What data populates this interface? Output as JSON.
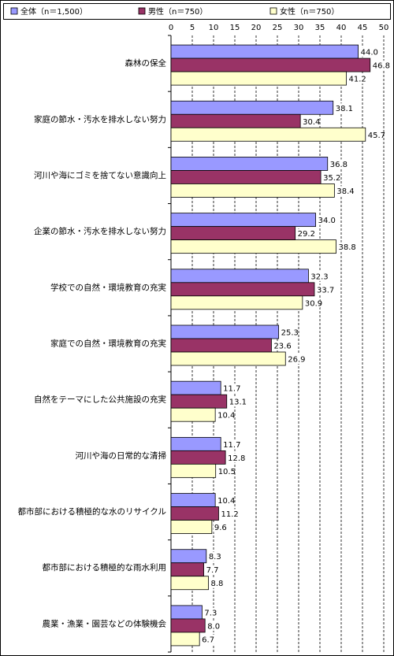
{
  "chart_data": {
    "type": "hbar",
    "categories": [
      "森林の保全",
      "家庭の節水・汚水を排水しない努力",
      "河川や海にゴミを捨てない意識向上",
      "企業の節水・汚水を排水しない努力",
      "学校での自然・環境教育の充実",
      "家庭での自然・環境教育の充実",
      "自然をテーマにした公共施設の充実",
      "河川や海の日常的な清掃",
      "都市部における積極的な水のリサイクル",
      "都市部における積極的な雨水利用",
      "農業・漁業・園芸などの体験機会"
    ],
    "series": [
      {
        "name": "全体（n＝1,500）",
        "color": "#9999ff",
        "values": [
          44.0,
          38.1,
          36.8,
          34.0,
          32.3,
          25.3,
          11.7,
          11.7,
          10.4,
          8.3,
          7.3
        ],
        "value_labels": [
          "44.0",
          "38.1",
          "36.8",
          "34.0",
          "32.3",
          "25.3",
          "11.7",
          "11.7",
          "10.4",
          "8.3",
          "7.3"
        ]
      },
      {
        "name": "男性（n＝750）",
        "color": "#993366",
        "values": [
          46.8,
          30.4,
          35.2,
          29.2,
          33.7,
          23.6,
          13.1,
          12.8,
          11.2,
          7.7,
          8.0
        ],
        "value_labels": [
          "46.8",
          "30.4",
          "35.2",
          "29.2",
          "33.7",
          "23.6",
          "13.1",
          "12.8",
          "11.2",
          "7.7",
          "8.0"
        ]
      },
      {
        "name": "女性（n＝750）",
        "color": "#ffffcc",
        "values": [
          41.2,
          45.7,
          38.4,
          38.8,
          30.9,
          26.9,
          10.4,
          10.5,
          9.6,
          8.8,
          6.7
        ],
        "value_labels": [
          "41.2",
          "45.7",
          "38.4",
          "38.8",
          "30.9",
          "26.9",
          "10.4",
          "10.5",
          "9.6",
          "8.8",
          "6.7"
        ]
      }
    ],
    "xlim": [
      0,
      50
    ],
    "xticks": [
      0,
      5,
      10,
      15,
      20,
      25,
      30,
      35,
      40,
      45,
      50
    ],
    "grid": true
  }
}
